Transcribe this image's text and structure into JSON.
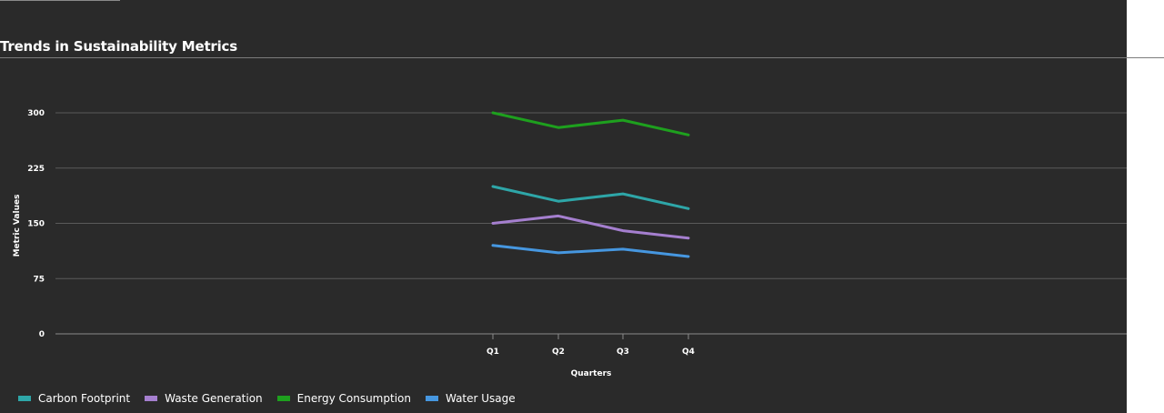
{
  "chart_data": {
    "type": "line",
    "title": "Trends in Sustainability Metrics",
    "xlabel": "Quarters",
    "ylabel": "Metric Values",
    "categories": [
      "Q1",
      "Q2",
      "Q3",
      "Q4"
    ],
    "ylim": [
      0,
      300
    ],
    "yticks": [
      0,
      75,
      150,
      225,
      300
    ],
    "grid": true,
    "legend_position": "bottom-left",
    "series": [
      {
        "name": "Carbon Footprint",
        "color": "#2ea6a8",
        "values": [
          200,
          180,
          190,
          170
        ]
      },
      {
        "name": "Waste Generation",
        "color": "#a57fcf",
        "values": [
          150,
          160,
          140,
          130
        ]
      },
      {
        "name": "Energy Consumption",
        "color": "#1ea01e",
        "values": [
          300,
          280,
          290,
          270
        ]
      },
      {
        "name": "Water Usage",
        "color": "#4697e0",
        "values": [
          120,
          110,
          115,
          105
        ]
      }
    ]
  }
}
